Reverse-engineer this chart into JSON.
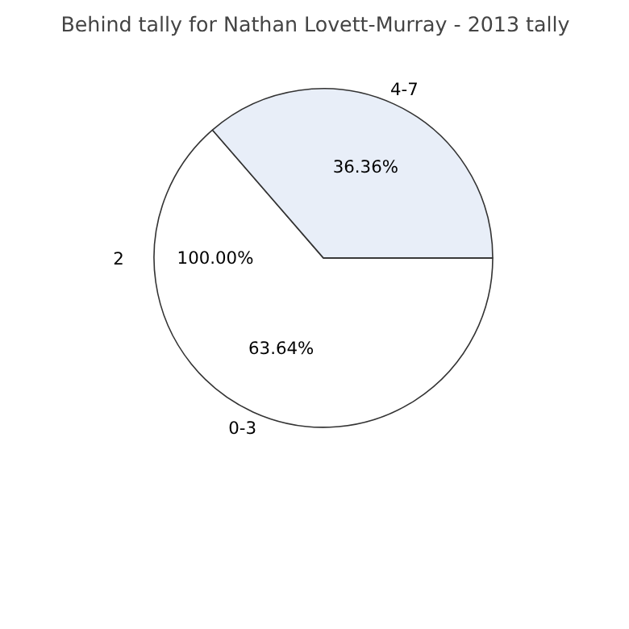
{
  "chart_data": {
    "type": "pie",
    "title": "Behind tally for Nathan Lovett-Murray - 2013 tally",
    "categories": [
      "0-3",
      "4-7"
    ],
    "values": [
      63.64,
      36.36
    ],
    "colors": [
      "#ffffff",
      "#e8eef8"
    ],
    "value_labels": [
      "63.64%",
      "36.36%"
    ],
    "annotations": [
      "2",
      "100.00%"
    ]
  }
}
